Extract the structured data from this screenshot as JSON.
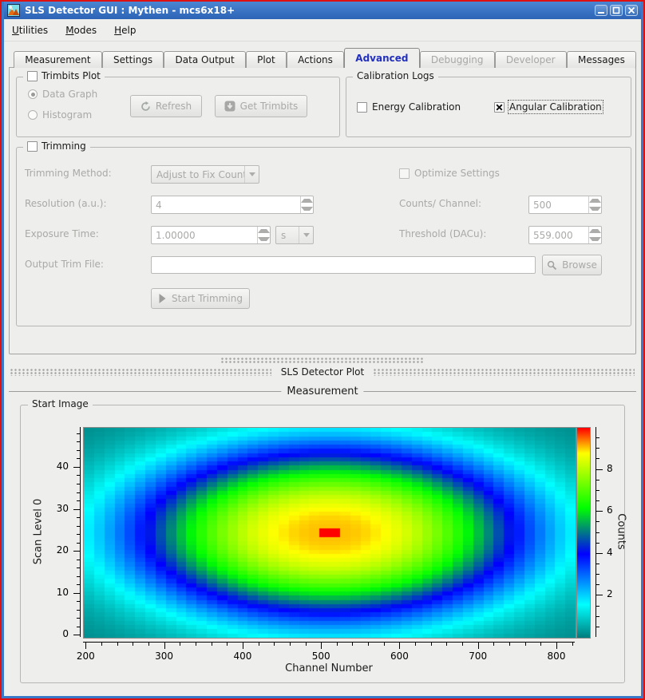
{
  "window": {
    "title": "SLS Detector GUI : Mythen - mcs6x18+"
  },
  "menu": {
    "items": [
      {
        "label": "Utilities",
        "underline": 0
      },
      {
        "label": "Modes",
        "underline": 0
      },
      {
        "label": "Help",
        "underline": 0
      }
    ]
  },
  "tabs": [
    {
      "label": "Measurement",
      "state": "normal"
    },
    {
      "label": "Settings",
      "state": "normal"
    },
    {
      "label": "Data Output",
      "state": "normal"
    },
    {
      "label": "Plot",
      "state": "normal"
    },
    {
      "label": "Actions",
      "state": "normal"
    },
    {
      "label": "Advanced",
      "state": "active"
    },
    {
      "label": "Debugging",
      "state": "disabled"
    },
    {
      "label": "Developer",
      "state": "disabled"
    },
    {
      "label": "Messages",
      "state": "normal"
    }
  ],
  "trimbits_plot": {
    "title": "Trimbits Plot",
    "checked": false,
    "radio_data_graph": "Data Graph",
    "radio_histogram": "Histogram",
    "data_graph_selected": true,
    "refresh_button": "Refresh",
    "get_trimbits_button": "Get Trimbits"
  },
  "calibration_logs": {
    "title": "Calibration Logs",
    "energy_label": "Energy Calibration",
    "energy_checked": false,
    "angular_label": "Angular Calibration",
    "angular_checked": true
  },
  "trimming": {
    "title": "Trimming",
    "checked": false,
    "method_label": "Trimming Method:",
    "method_value": "Adjust to Fix Count Level",
    "optimize_label": "Optimize Settings",
    "optimize_checked": false,
    "resolution_label": "Resolution (a.u.):",
    "resolution_value": "4",
    "counts_label": "Counts/ Channel:",
    "counts_value": "500",
    "exposure_label": "Exposure Time:",
    "exposure_value": "1.00000",
    "exposure_unit": "s",
    "threshold_label": "Threshold (DACu):",
    "threshold_value": "559.000",
    "output_label": "Output Trim File:",
    "output_value": "",
    "browse_button": "Browse",
    "start_button": "Start Trimming"
  },
  "dock": {
    "plot_title": "SLS Detector Plot"
  },
  "measurement": {
    "title": "Measurement",
    "start_image_title": "Start Image"
  },
  "chart_data": {
    "type": "heatmap",
    "xlabel": "Channel Number",
    "ylabel": "Scan Level 0",
    "colorbar_label": "Counts",
    "x_range": [
      196.6,
      823.4
    ],
    "y_range": [
      -0.5,
      49.5
    ],
    "z_range": [
      0,
      10
    ],
    "x_ticks": [
      200,
      300,
      400,
      500,
      600,
      700,
      800
    ],
    "x_minor_step": 20,
    "y_ticks": [
      0,
      10,
      20,
      30,
      40
    ],
    "y_minor_step": 2,
    "colorbar_ticks": [
      2,
      4,
      6,
      8
    ],
    "colorbar_minor_step": 0.5,
    "grid": {
      "cols": 48,
      "rows": 50
    },
    "field": {
      "description": "smooth elliptical peak of counts centered in the scan image",
      "center_x": 510,
      "center_y": 24.5,
      "width_x": 251,
      "width_y": 20.4,
      "base": 0.1,
      "amplitude": 9.0,
      "exponent": 1.3
    },
    "hotspot": {
      "description": "maximum-count red cells",
      "x_min": 497,
      "x_max": 523,
      "rows": [
        24,
        25
      ],
      "value": 10
    },
    "colormap": [
      {
        "t": 0.0,
        "color": "#007d7d"
      },
      {
        "t": 0.16,
        "color": "#00ffff"
      },
      {
        "t": 0.4,
        "color": "#0000ff"
      },
      {
        "t": 0.62,
        "color": "#00ff00"
      },
      {
        "t": 0.88,
        "color": "#ffff00"
      },
      {
        "t": 1.0,
        "color": "#ff0000"
      }
    ]
  }
}
